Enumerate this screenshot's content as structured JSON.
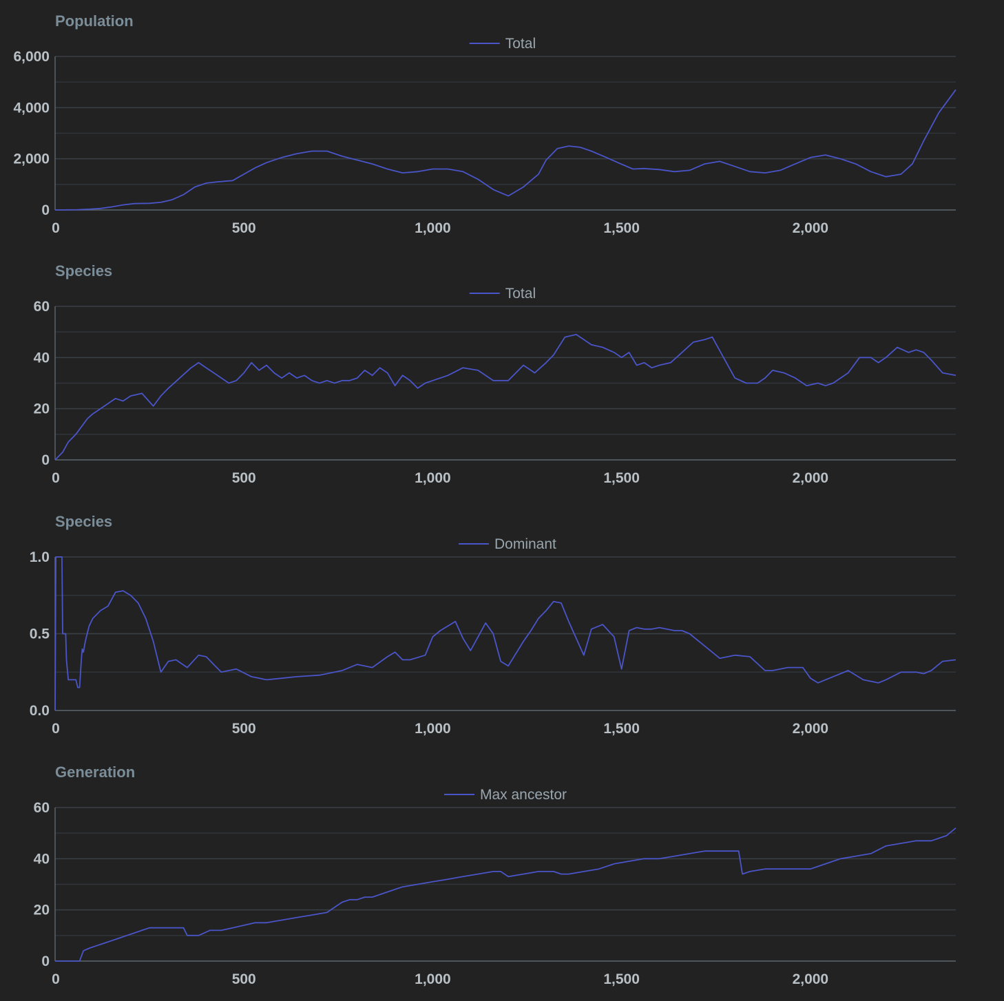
{
  "theme": {
    "background": "#222222",
    "line_color": "#4a55c9",
    "grid_color": "#3a4046",
    "title_color": "#7b8d98"
  },
  "chart_data": [
    {
      "type": "line",
      "title": "Population",
      "legend": [
        "Total"
      ],
      "legend_position": "top-center",
      "xlim": [
        0,
        2385
      ],
      "ylim": [
        0,
        6000
      ],
      "xticks": [
        "0",
        "500",
        "1,000",
        "1,500",
        "2,000"
      ],
      "yticks": [
        "0",
        "2,000",
        "4,000",
        "6,000"
      ],
      "grid": true,
      "series": [
        {
          "name": "Total",
          "x": [
            0,
            60,
            90,
            120,
            150,
            180,
            210,
            250,
            280,
            310,
            340,
            370,
            400,
            430,
            470,
            500,
            530,
            560,
            600,
            640,
            680,
            720,
            760,
            800,
            840,
            880,
            920,
            960,
            1000,
            1040,
            1080,
            1120,
            1160,
            1200,
            1240,
            1280,
            1300,
            1330,
            1360,
            1390,
            1420,
            1460,
            1490,
            1530,
            1560,
            1600,
            1640,
            1680,
            1720,
            1760,
            1800,
            1840,
            1880,
            1920,
            1960,
            2000,
            2040,
            2080,
            2120,
            2160,
            2200,
            2240,
            2270,
            2300,
            2340,
            2385
          ],
          "y": [
            0,
            10,
            30,
            60,
            120,
            200,
            250,
            260,
            300,
            400,
            600,
            900,
            1050,
            1100,
            1150,
            1400,
            1650,
            1850,
            2050,
            2200,
            2300,
            2300,
            2100,
            1950,
            1800,
            1600,
            1450,
            1500,
            1600,
            1600,
            1500,
            1200,
            800,
            550,
            900,
            1400,
            1950,
            2400,
            2500,
            2450,
            2300,
            2050,
            1850,
            1600,
            1620,
            1580,
            1500,
            1550,
            1800,
            1900,
            1700,
            1500,
            1450,
            1550,
            1800,
            2050,
            2150,
            2000,
            1800,
            1500,
            1300,
            1400,
            1800,
            2700,
            3800,
            4700
          ]
        }
      ]
    },
    {
      "type": "line",
      "title": "Species",
      "legend": [
        "Total"
      ],
      "legend_position": "top-center",
      "xlim": [
        0,
        2385
      ],
      "ylim": [
        0,
        60
      ],
      "xticks": [
        "0",
        "500",
        "1,000",
        "1,500",
        "2,000"
      ],
      "yticks": [
        "0",
        "20",
        "40",
        "60"
      ],
      "grid": true,
      "series": [
        {
          "name": "Total",
          "x": [
            0,
            20,
            35,
            55,
            70,
            85,
            100,
            120,
            140,
            160,
            180,
            200,
            230,
            260,
            280,
            300,
            330,
            360,
            380,
            400,
            430,
            460,
            480,
            500,
            520,
            540,
            560,
            580,
            600,
            620,
            640,
            660,
            680,
            700,
            720,
            740,
            760,
            780,
            800,
            820,
            840,
            860,
            880,
            900,
            920,
            940,
            960,
            980,
            1000,
            1040,
            1080,
            1120,
            1160,
            1200,
            1240,
            1270,
            1300,
            1320,
            1350,
            1380,
            1400,
            1420,
            1450,
            1480,
            1500,
            1520,
            1540,
            1560,
            1580,
            1600,
            1630,
            1660,
            1690,
            1720,
            1740,
            1770,
            1800,
            1830,
            1860,
            1880,
            1900,
            1930,
            1960,
            1990,
            2020,
            2040,
            2060,
            2100,
            2130,
            2160,
            2180,
            2200,
            2230,
            2260,
            2280,
            2300,
            2320,
            2350,
            2385
          ],
          "y": [
            0,
            3,
            7,
            10,
            13,
            16,
            18,
            20,
            22,
            24,
            23,
            25,
            26,
            21,
            25,
            28,
            32,
            36,
            38,
            36,
            33,
            30,
            31,
            34,
            38,
            35,
            37,
            34,
            32,
            34,
            32,
            33,
            31,
            30,
            31,
            30,
            31,
            31,
            32,
            35,
            33,
            36,
            34,
            29,
            33,
            31,
            28,
            30,
            31,
            33,
            36,
            35,
            31,
            31,
            37,
            34,
            38,
            41,
            48,
            49,
            47,
            45,
            44,
            42,
            40,
            42,
            37,
            38,
            36,
            37,
            38,
            42,
            46,
            47,
            48,
            40,
            32,
            30,
            30,
            32,
            35,
            34,
            32,
            29,
            30,
            29,
            30,
            34,
            40,
            40,
            38,
            40,
            44,
            42,
            43,
            42,
            39,
            34,
            33
          ]
        }
      ]
    },
    {
      "type": "line",
      "title": "Species",
      "legend": [
        "Dominant"
      ],
      "legend_position": "top-center",
      "xlim": [
        0,
        2385
      ],
      "ylim": [
        0,
        1
      ],
      "xticks": [
        "0",
        "500",
        "1,000",
        "1,500",
        "2,000"
      ],
      "yticks": [
        "0.0",
        "0.5",
        "1.0"
      ],
      "grid": true,
      "series": [
        {
          "name": "Dominant",
          "x": [
            0,
            2,
            18,
            20,
            28,
            30,
            35,
            40,
            55,
            60,
            65,
            70,
            72,
            75,
            80,
            85,
            90,
            100,
            120,
            140,
            160,
            180,
            200,
            220,
            240,
            260,
            280,
            300,
            320,
            350,
            380,
            400,
            420,
            440,
            480,
            520,
            560,
            600,
            640,
            700,
            760,
            800,
            840,
            880,
            900,
            920,
            940,
            980,
            1000,
            1020,
            1040,
            1060,
            1080,
            1100,
            1140,
            1160,
            1180,
            1200,
            1240,
            1260,
            1280,
            1300,
            1320,
            1340,
            1360,
            1380,
            1400,
            1420,
            1450,
            1480,
            1500,
            1520,
            1540,
            1560,
            1580,
            1600,
            1640,
            1660,
            1680,
            1720,
            1760,
            1800,
            1840,
            1880,
            1900,
            1940,
            1980,
            2000,
            2020,
            2060,
            2100,
            2140,
            2180,
            2200,
            2240,
            2280,
            2300,
            2320,
            2350,
            2385
          ],
          "y": [
            0,
            1.0,
            1.0,
            0.5,
            0.5,
            0.33,
            0.2,
            0.2,
            0.2,
            0.15,
            0.15,
            0.35,
            0.4,
            0.38,
            0.45,
            0.5,
            0.55,
            0.6,
            0.65,
            0.68,
            0.77,
            0.78,
            0.75,
            0.7,
            0.6,
            0.45,
            0.25,
            0.32,
            0.33,
            0.28,
            0.36,
            0.35,
            0.3,
            0.25,
            0.27,
            0.22,
            0.2,
            0.21,
            0.22,
            0.23,
            0.26,
            0.3,
            0.28,
            0.35,
            0.38,
            0.33,
            0.33,
            0.36,
            0.48,
            0.52,
            0.55,
            0.58,
            0.47,
            0.39,
            0.57,
            0.5,
            0.32,
            0.29,
            0.45,
            0.52,
            0.6,
            0.65,
            0.71,
            0.7,
            0.58,
            0.47,
            0.36,
            0.53,
            0.56,
            0.48,
            0.27,
            0.52,
            0.54,
            0.53,
            0.53,
            0.54,
            0.52,
            0.52,
            0.5,
            0.42,
            0.34,
            0.36,
            0.35,
            0.26,
            0.26,
            0.28,
            0.28,
            0.21,
            0.18,
            0.22,
            0.26,
            0.2,
            0.18,
            0.2,
            0.25,
            0.25,
            0.24,
            0.26,
            0.32,
            0.33
          ]
        }
      ]
    },
    {
      "type": "line",
      "title": "Generation",
      "legend": [
        "Max ancestor"
      ],
      "legend_position": "top-center",
      "xlim": [
        0,
        2385
      ],
      "ylim": [
        0,
        60
      ],
      "xticks": [
        "0",
        "500",
        "1,000",
        "1,500",
        "2,000"
      ],
      "yticks": [
        "0",
        "20",
        "40",
        "60"
      ],
      "grid": true,
      "series": [
        {
          "name": "Max ancestor",
          "x": [
            0,
            65,
            75,
            90,
            110,
            130,
            150,
            170,
            190,
            210,
            230,
            250,
            270,
            300,
            340,
            350,
            380,
            410,
            440,
            470,
            500,
            530,
            560,
            600,
            640,
            680,
            720,
            740,
            760,
            780,
            800,
            820,
            840,
            860,
            880,
            900,
            920,
            960,
            1000,
            1040,
            1080,
            1120,
            1160,
            1180,
            1200,
            1240,
            1280,
            1320,
            1340,
            1360,
            1400,
            1440,
            1480,
            1520,
            1560,
            1600,
            1640,
            1680,
            1720,
            1760,
            1800,
            1810,
            1820,
            1840,
            1880,
            1920,
            1960,
            2000,
            2020,
            2060,
            2080,
            2120,
            2160,
            2200,
            2240,
            2280,
            2320,
            2340,
            2360,
            2385
          ],
          "y": [
            0,
            0,
            4,
            5,
            6,
            7,
            8,
            9,
            10,
            11,
            12,
            13,
            13,
            13,
            13,
            10,
            10,
            12,
            12,
            13,
            14,
            15,
            15,
            16,
            17,
            18,
            19,
            21,
            23,
            24,
            24,
            25,
            25,
            26,
            27,
            28,
            29,
            30,
            31,
            32,
            33,
            34,
            35,
            35,
            33,
            34,
            35,
            35,
            34,
            34,
            35,
            36,
            38,
            39,
            40,
            40,
            41,
            42,
            43,
            43,
            43,
            43,
            34,
            35,
            36,
            36,
            36,
            36,
            37,
            39,
            40,
            41,
            42,
            45,
            46,
            47,
            47,
            48,
            49,
            52
          ]
        }
      ]
    }
  ]
}
